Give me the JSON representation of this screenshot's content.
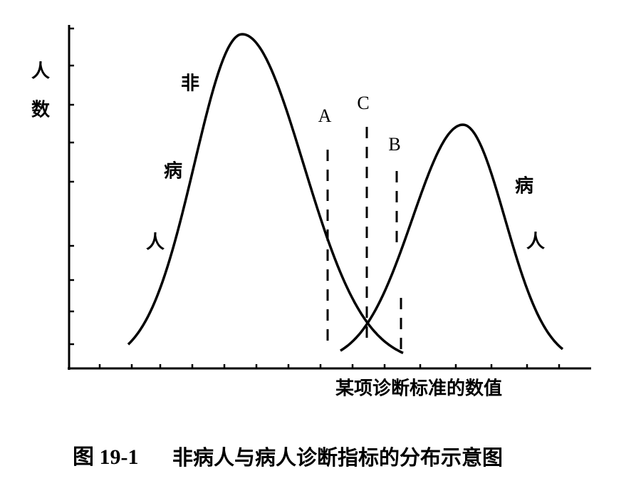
{
  "axes": {
    "y_label": [
      "人",
      "数"
    ],
    "x_label": "某项诊断标准的数值"
  },
  "curves": [
    {
      "label": [
        "非",
        "病",
        "人"
      ]
    },
    {
      "label": [
        "病",
        "人"
      ]
    }
  ],
  "cutoffs": [
    "A",
    "C",
    "B"
  ],
  "caption": {
    "figure": "图 19-1",
    "text": "非病人与病人诊断指标的分布示意图"
  }
}
